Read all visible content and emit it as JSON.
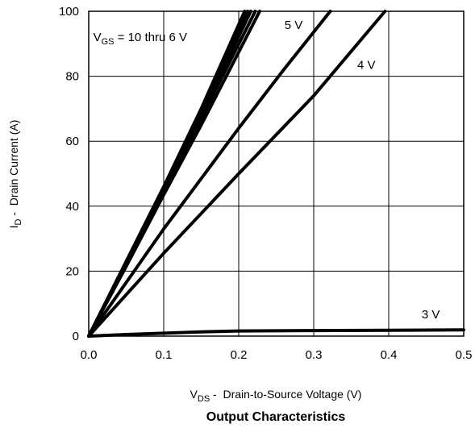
{
  "chart_data": {
    "type": "line",
    "caption": "Output Characteristics",
    "xlabel": {
      "main": "V",
      "sub": "DS",
      "rest": " -  Drain-to-Source Voltage (V)"
    },
    "ylabel": {
      "main": "I",
      "sub": "D",
      "rest": " -  Drain Current (A)"
    },
    "xlim": [
      0.0,
      0.5
    ],
    "ylim": [
      0,
      100
    ],
    "xticks": [
      "0.0",
      "0.1",
      "0.2",
      "0.3",
      "0.4",
      "0.5"
    ],
    "yticks": [
      "0",
      "20",
      "40",
      "60",
      "80",
      "100"
    ],
    "grid": true,
    "series": [
      {
        "name": "10 V",
        "x": [
          0.0,
          0.05,
          0.1,
          0.15,
          0.208
        ],
        "y": [
          0,
          23,
          46,
          70,
          100
        ]
      },
      {
        "name": "9 V",
        "x": [
          0.0,
          0.05,
          0.1,
          0.15,
          0.212
        ],
        "y": [
          0,
          22.8,
          45.5,
          69,
          100
        ]
      },
      {
        "name": "8 V",
        "x": [
          0.0,
          0.05,
          0.1,
          0.15,
          0.216
        ],
        "y": [
          0,
          22.5,
          45,
          68,
          100
        ]
      },
      {
        "name": "7 V",
        "x": [
          0.0,
          0.05,
          0.1,
          0.15,
          0.222
        ],
        "y": [
          0,
          22,
          44.5,
          67,
          100
        ]
      },
      {
        "name": "6 V",
        "x": [
          0.0,
          0.05,
          0.1,
          0.15,
          0.228
        ],
        "y": [
          0,
          21.5,
          43.5,
          65,
          100
        ]
      },
      {
        "name": "5 V",
        "x": [
          0.0,
          0.1,
          0.2,
          0.26,
          0.322
        ],
        "y": [
          0,
          33,
          64,
          82,
          100
        ]
      },
      {
        "name": "4 V",
        "x": [
          0.0,
          0.1,
          0.2,
          0.3,
          0.395
        ],
        "y": [
          0,
          25.5,
          50,
          74,
          100
        ]
      },
      {
        "name": "3 V",
        "x": [
          0.0,
          0.05,
          0.1,
          0.15,
          0.2,
          0.3,
          0.4,
          0.5
        ],
        "y": [
          0,
          0.5,
          0.9,
          1.3,
          1.6,
          1.7,
          1.8,
          1.9
        ]
      }
    ],
    "annotations": [
      {
        "main": "V",
        "sub": "GS",
        "rest": " = 10 thru 6 V",
        "at_x": 0.006,
        "at_y": 90.8
      },
      {
        "text": "5 V",
        "at_x": 0.261,
        "at_y": 94.5
      },
      {
        "text": "4 V",
        "at_x": 0.358,
        "at_y": 82.3
      },
      {
        "text": "3 V",
        "at_x": 0.444,
        "at_y": 5.5
      }
    ]
  }
}
